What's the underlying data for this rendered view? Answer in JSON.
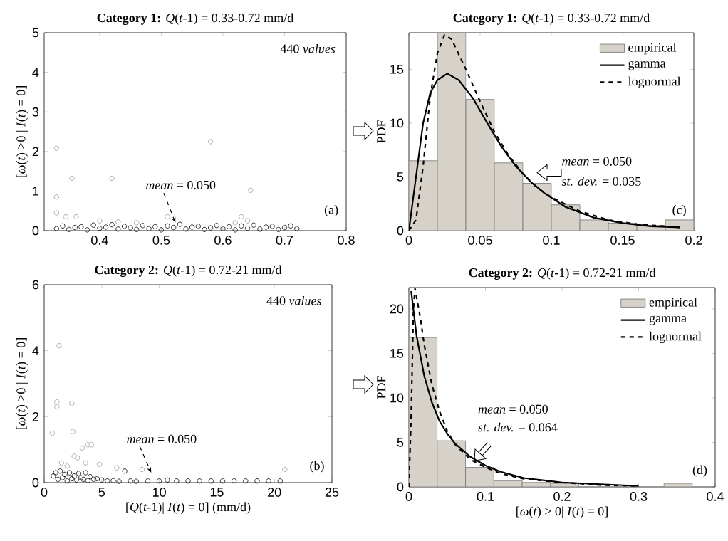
{
  "chart_data": [
    {
      "type": "scatter",
      "title": "**Category 1:** *Q*(*t*-1) = 0.33-0.72 mm/d",
      "ylabel": "[*ω*(*t*) >0 | *I*(*t*) = 0]",
      "xlim": [
        0.31,
        0.8
      ],
      "xticks": [
        0.4,
        0.5,
        0.6,
        0.7,
        0.8
      ],
      "ylim": [
        0,
        5
      ],
      "yticks": [
        0,
        1,
        2,
        3,
        4,
        5
      ],
      "marker": "circle",
      "legend": false,
      "annotations": [
        "440 *values*",
        "*mean* = 0.050",
        "(a)"
      ],
      "series": [
        {
          "color": "#999999",
          "x": [
            0.33,
            0.33,
            0.33,
            0.345,
            0.355,
            0.362,
            0.4,
            0.42,
            0.43,
            0.46,
            0.51,
            0.58,
            0.62,
            0.63,
            0.64,
            0.645
          ],
          "values": [
            2.08,
            0.85,
            0.45,
            0.35,
            1.32,
            0.35,
            0.25,
            1.32,
            0.22,
            0.2,
            0.35,
            2.25,
            0.2,
            0.35,
            0.25,
            1.02
          ]
        },
        {
          "color": "#000000",
          "x": [
            0.33,
            0.34,
            0.35,
            0.36,
            0.37,
            0.38,
            0.39,
            0.4,
            0.41,
            0.42,
            0.43,
            0.44,
            0.45,
            0.46,
            0.47,
            0.48,
            0.49,
            0.5,
            0.51,
            0.52,
            0.53,
            0.54,
            0.55,
            0.56,
            0.57,
            0.58,
            0.59,
            0.6,
            0.61,
            0.62,
            0.63,
            0.64,
            0.65,
            0.66,
            0.67,
            0.68,
            0.69,
            0.7,
            0.71,
            0.72
          ],
          "values": [
            0.05,
            0.12,
            0.03,
            0.08,
            0.1,
            0.02,
            0.14,
            0.06,
            0.09,
            0.15,
            0.04,
            0.11,
            0.07,
            0.03,
            0.13,
            0.05,
            0.1,
            0.02,
            0.12,
            0.08,
            0.16,
            0.04,
            0.09,
            0.11,
            0.03,
            0.07,
            0.13,
            0.05,
            0.1,
            0.02,
            0.12,
            0.06,
            0.14,
            0.04,
            0.09,
            0.11,
            0.03,
            0.08,
            0.12,
            0.05
          ]
        }
      ]
    },
    {
      "type": "scatter",
      "title": "**Category 2:** *Q*(*t*-1) = 0.72-21 mm/d",
      "xlabel": "[*Q*(*t*-1)| *I*(*t*) = 0] (mm/d)",
      "ylabel": "[*ω*(*t*) >0 | *I*(*t*) = 0]",
      "xlim": [
        0,
        25
      ],
      "xticks": [
        0,
        5,
        10,
        15,
        20,
        25
      ],
      "ylim": [
        0,
        6
      ],
      "yticks": [
        0,
        2,
        4,
        6
      ],
      "marker": "circle",
      "legend": false,
      "annotations": [
        "440 *values*",
        "*mean* = 0.050",
        "(b)"
      ],
      "series": [
        {
          "color": "#999999",
          "x": [
            0.7,
            1.1,
            1.1,
            1.3,
            1.5,
            2.0,
            2.4,
            2.5,
            2.6,
            2.9,
            3.3,
            3.6,
            3.8,
            4.1,
            4.8,
            6.3,
            8.5,
            20.9
          ],
          "values": [
            1.5,
            2.3,
            2.45,
            4.15,
            0.6,
            0.5,
            2.4,
            1.55,
            0.8,
            0.75,
            1.05,
            0.6,
            1.15,
            1.15,
            0.55,
            0.45,
            0.4,
            0.4
          ]
        },
        {
          "color": "#000000",
          "x": [
            0.8,
            1.0,
            1.2,
            1.4,
            1.6,
            1.8,
            2.0,
            2.2,
            2.4,
            2.6,
            2.8,
            3.0,
            3.2,
            3.4,
            3.6,
            3.8,
            4.0,
            4.3,
            4.6,
            5.0,
            5.5,
            6.0,
            6.5,
            7.0,
            7.5,
            8.0,
            9.0,
            10.0,
            10.7,
            11.5,
            12.5,
            13.5,
            14.5,
            15.5,
            16.5,
            17.5,
            18.5,
            19.5,
            20.5
          ],
          "values": [
            0.2,
            0.3,
            0.1,
            0.35,
            0.15,
            0.25,
            0.05,
            0.3,
            0.12,
            0.2,
            0.08,
            0.28,
            0.15,
            0.1,
            0.3,
            0.06,
            0.18,
            0.1,
            0.12,
            0.08,
            0.05,
            0.06,
            0.04,
            0.35,
            0.05,
            0.04,
            0.05,
            0.05,
            0.08,
            0.05,
            0.05,
            0.05,
            0.05,
            0.05,
            0.05,
            0.05,
            0.05,
            0.05,
            0.05
          ]
        }
      ]
    },
    {
      "type": "histogram",
      "title": "**Category 1:** *Q*(*t*-1) = 0.33-0.72 mm/d",
      "ylabel": "PDF",
      "xlim": [
        0,
        0.2
      ],
      "xticks": [
        0,
        0.05,
        0.1,
        0.15,
        0.2
      ],
      "ylim": [
        0,
        18.4
      ],
      "yticks": [
        0,
        5,
        10,
        15
      ],
      "legend": "top right",
      "annotations": [
        "*mean* = 0.050",
        "*st. dev.* = 0.035",
        "(c)"
      ],
      "series": [
        {
          "name": "empirical",
          "type": "histogram",
          "color": "#d6d1c9",
          "bins": [
            0,
            0.02,
            0.04,
            0.06,
            0.08,
            0.1,
            0.12,
            0.14,
            0.16,
            0.18,
            0.2
          ],
          "values": [
            6.5,
            18.4,
            12.2,
            6.3,
            4.4,
            2.4,
            1.0,
            0.7,
            0.5,
            1.0
          ]
        },
        {
          "name": "gamma",
          "type": "line",
          "line_style": "solid",
          "color": "#000000",
          "x": [
            0,
            0.005,
            0.01,
            0.015,
            0.02,
            0.027,
            0.035,
            0.045,
            0.055,
            0.065,
            0.075,
            0.085,
            0.095,
            0.11,
            0.13,
            0.15,
            0.17,
            0.19
          ],
          "values": [
            0,
            5,
            10,
            12.8,
            14,
            14.6,
            14,
            12.3,
            10,
            7.8,
            6,
            4.6,
            3.5,
            2.2,
            1.2,
            0.7,
            0.4,
            0.3
          ]
        },
        {
          "name": "lognormal",
          "type": "line",
          "line_style": "dashed",
          "color": "#000000",
          "x": [
            0,
            0.005,
            0.01,
            0.015,
            0.02,
            0.025,
            0.03,
            0.04,
            0.05,
            0.06,
            0.07,
            0.08,
            0.09,
            0.1,
            0.12,
            0.14,
            0.16,
            0.19
          ],
          "values": [
            0,
            1,
            6,
            12.5,
            16.5,
            18.2,
            17.8,
            15,
            12,
            9.2,
            7,
            5.3,
            4,
            3.1,
            1.8,
            1.0,
            0.6,
            0.3
          ]
        }
      ]
    },
    {
      "type": "histogram",
      "title": "**Category 2:** *Q*(*t*-1) = 0.72-21 mm/d",
      "xlabel": "[*ω*(*t*) > 0| *I*(*t*) = 0]",
      "ylabel": "PDF",
      "xlim": [
        0,
        0.4
      ],
      "xticks": [
        0,
        0.1,
        0.2,
        0.3,
        0.4
      ],
      "ylim": [
        0,
        22.4
      ],
      "yticks": [
        0,
        5,
        10,
        15,
        20
      ],
      "legend": "top right",
      "annotations": [
        "*mean* = 0.050",
        "*st. dev.* = 0.064",
        "(d)"
      ],
      "series": [
        {
          "name": "empirical",
          "type": "histogram",
          "color": "#d6d1c9",
          "bins": [
            0,
            0.037,
            0.074,
            0.111,
            0.148,
            0.185,
            0.222,
            0.259,
            0.296,
            0.333,
            0.37
          ],
          "values": [
            16.8,
            5.2,
            2.2,
            0.7,
            0.5,
            0.4,
            null,
            null,
            null,
            0.4
          ]
        },
        {
          "name": "gamma",
          "type": "line",
          "line_style": "solid",
          "color": "#000000",
          "x": [
            0.003,
            0.01,
            0.02,
            0.03,
            0.04,
            0.05,
            0.06,
            0.08,
            0.1,
            0.12,
            0.15,
            0.2,
            0.25,
            0.3
          ],
          "values": [
            22,
            17,
            12.5,
            9.5,
            7.4,
            6,
            4.9,
            3.4,
            2.4,
            1.7,
            1.0,
            0.5,
            0.3,
            0.1
          ]
        },
        {
          "name": "lognormal",
          "type": "line",
          "line_style": "dashed",
          "color": "#000000",
          "x": [
            0,
            0.003,
            0.006,
            0.008,
            0.015,
            0.02,
            0.03,
            0.04,
            0.05,
            0.06,
            0.08,
            0.1,
            0.12,
            0.15,
            0.2,
            0.25,
            0.3
          ],
          "values": [
            0,
            8,
            20,
            22.3,
            19,
            16,
            11.5,
            8.5,
            6.3,
            4.8,
            3.1,
            2.2,
            1.5,
            0.9,
            0.5,
            0.2,
            0.1
          ]
        }
      ]
    }
  ]
}
